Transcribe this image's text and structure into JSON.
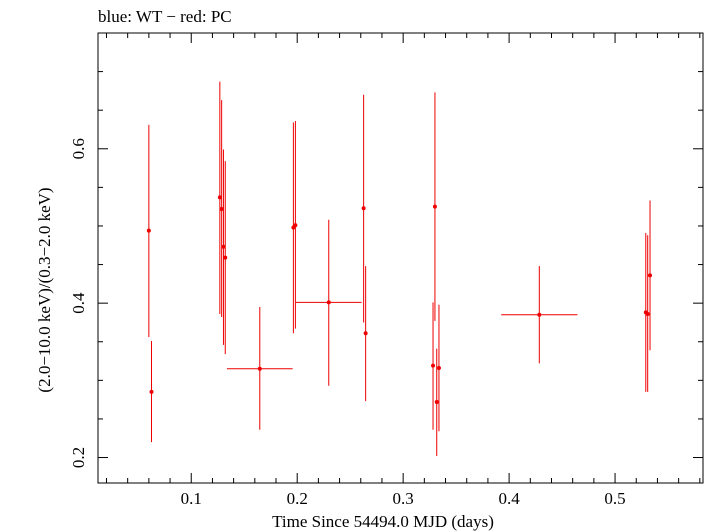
{
  "chart_data": {
    "type": "scatter",
    "title": "blue: WT − red: PC",
    "xlabel": "Time Since 54494.0 MJD (days)",
    "ylabel": "(2.0−10.0 keV)/(0.3−2.0 keV)",
    "xlim": [
      0.012,
      0.583
    ],
    "ylim": [
      0.167,
      0.75
    ],
    "x_ticks": [
      0.1,
      0.2,
      0.3,
      0.4,
      0.5
    ],
    "x_tick_labels": [
      "0.1",
      "0.2",
      "0.3",
      "0.4",
      "0.5"
    ],
    "y_ticks": [
      0.2,
      0.4,
      0.6
    ],
    "y_tick_labels": [
      "0.2",
      "0.4",
      "0.6"
    ],
    "grid": false,
    "series": [
      {
        "color": "#ee0000",
        "points": [
          {
            "x": 0.06,
            "y": 0.494,
            "xerr": 0.0,
            "ylo": 0.356,
            "yhi": 0.631
          },
          {
            "x": 0.0625,
            "y": 0.285,
            "xerr": 0.0,
            "ylo": 0.22,
            "yhi": 0.351
          },
          {
            "x": 0.127,
            "y": 0.537,
            "xerr": 0.0,
            "ylo": 0.386,
            "yhi": 0.687
          },
          {
            "x": 0.1287,
            "y": 0.522,
            "xerr": 0.0,
            "ylo": 0.382,
            "yhi": 0.663
          },
          {
            "x": 0.1304,
            "y": 0.473,
            "xerr": 0.0,
            "ylo": 0.346,
            "yhi": 0.599
          },
          {
            "x": 0.1321,
            "y": 0.459,
            "xerr": 0.0,
            "ylo": 0.334,
            "yhi": 0.584
          },
          {
            "x": 0.1647,
            "y": 0.315,
            "xerr": 0.031,
            "ylo": 0.236,
            "yhi": 0.395
          },
          {
            "x": 0.1964,
            "y": 0.498,
            "xerr": 0.0,
            "ylo": 0.361,
            "yhi": 0.634
          },
          {
            "x": 0.1983,
            "y": 0.501,
            "xerr": 0.0,
            "ylo": 0.367,
            "yhi": 0.636
          },
          {
            "x": 0.2298,
            "y": 0.401,
            "xerr": 0.031,
            "ylo": 0.293,
            "yhi": 0.508
          },
          {
            "x": 0.2627,
            "y": 0.523,
            "xerr": 0.0,
            "ylo": 0.375,
            "yhi": 0.67
          },
          {
            "x": 0.2646,
            "y": 0.361,
            "xerr": 0.0,
            "ylo": 0.273,
            "yhi": 0.448
          },
          {
            "x": 0.3282,
            "y": 0.319,
            "xerr": 0.0,
            "ylo": 0.236,
            "yhi": 0.401
          },
          {
            "x": 0.33,
            "y": 0.525,
            "xerr": 0.0,
            "ylo": 0.377,
            "yhi": 0.673
          },
          {
            "x": 0.3317,
            "y": 0.272,
            "xerr": 0.0,
            "ylo": 0.202,
            "yhi": 0.341
          },
          {
            "x": 0.3338,
            "y": 0.316,
            "xerr": 0.0,
            "ylo": 0.234,
            "yhi": 0.398
          },
          {
            "x": 0.4285,
            "y": 0.385,
            "xerr": 0.036,
            "ylo": 0.322,
            "yhi": 0.448
          },
          {
            "x": 0.529,
            "y": 0.388,
            "xerr": 0.0,
            "ylo": 0.285,
            "yhi": 0.491
          },
          {
            "x": 0.5308,
            "y": 0.386,
            "xerr": 0.0,
            "ylo": 0.285,
            "yhi": 0.488
          },
          {
            "x": 0.533,
            "y": 0.436,
            "xerr": 0.0,
            "ylo": 0.339,
            "yhi": 0.533
          }
        ]
      }
    ]
  }
}
